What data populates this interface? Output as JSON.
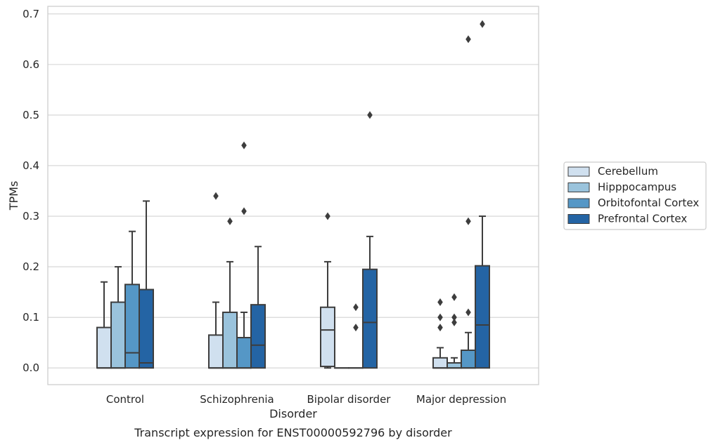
{
  "chart_data": {
    "type": "box",
    "title": "",
    "caption": "Transcript expression for ENST00000592796 by disorder",
    "xlabel": "Disorder",
    "ylabel": "TPMs",
    "ylim": [
      -0.033,
      0.715
    ],
    "yticks": [
      0.0,
      0.1,
      0.2,
      0.3,
      0.4,
      0.5,
      0.6,
      0.7
    ],
    "ytick_labels": [
      "0.0",
      "0.1",
      "0.2",
      "0.3",
      "0.4",
      "0.5",
      "0.6",
      "0.7"
    ],
    "grid": "horizontal",
    "legend_position": "right",
    "categories": [
      "Control",
      "Schizophrenia",
      "Bipolar disorder",
      "Major depression"
    ],
    "series": [
      {
        "name": "Cerebellum",
        "color": "#d0e0ef",
        "boxes": [
          {
            "q1": 0.0,
            "median": 0.0,
            "q3": 0.08,
            "whisker_low": 0.0,
            "whisker_high": 0.17,
            "outliers": []
          },
          {
            "q1": 0.0,
            "median": 0.0,
            "q3": 0.065,
            "whisker_low": 0.0,
            "whisker_high": 0.13,
            "outliers": [
              0.34
            ]
          },
          {
            "q1": 0.003,
            "median": 0.075,
            "q3": 0.12,
            "whisker_low": 0.0,
            "whisker_high": 0.21,
            "outliers": [
              0.3
            ]
          },
          {
            "q1": 0.0,
            "median": 0.0,
            "q3": 0.02,
            "whisker_low": 0.0,
            "whisker_high": 0.04,
            "outliers": [
              0.08,
              0.1,
              0.13
            ]
          }
        ]
      },
      {
        "name": "Hipppocampus",
        "color": "#9ac3dc",
        "boxes": [
          {
            "q1": 0.0,
            "median": 0.0,
            "q3": 0.13,
            "whisker_low": 0.0,
            "whisker_high": 0.2,
            "outliers": []
          },
          {
            "q1": 0.0,
            "median": 0.0,
            "q3": 0.11,
            "whisker_low": 0.0,
            "whisker_high": 0.21,
            "outliers": [
              0.29
            ]
          },
          {
            "q1": 0.0,
            "median": 0.0,
            "q3": 0.0,
            "whisker_low": 0.0,
            "whisker_high": 0.0,
            "outliers": []
          },
          {
            "q1": 0.0,
            "median": 0.0,
            "q3": 0.01,
            "whisker_low": 0.0,
            "whisker_high": 0.02,
            "outliers": [
              0.09,
              0.1,
              0.14
            ]
          }
        ]
      },
      {
        "name": "Orbitofontal Cortex",
        "color": "#5597c6",
        "boxes": [
          {
            "q1": 0.0,
            "median": 0.03,
            "q3": 0.165,
            "whisker_low": 0.0,
            "whisker_high": 0.27,
            "outliers": []
          },
          {
            "q1": 0.0,
            "median": 0.0,
            "q3": 0.06,
            "whisker_low": 0.0,
            "whisker_high": 0.11,
            "outliers": [
              0.31,
              0.44
            ]
          },
          {
            "q1": 0.0,
            "median": 0.0,
            "q3": 0.0,
            "whisker_low": 0.0,
            "whisker_high": 0.0,
            "outliers": [
              0.08,
              0.12
            ]
          },
          {
            "q1": 0.0,
            "median": 0.0,
            "q3": 0.035,
            "whisker_low": 0.0,
            "whisker_high": 0.07,
            "outliers": [
              0.11,
              0.29,
              0.65
            ]
          }
        ]
      },
      {
        "name": "Prefrontal Cortex",
        "color": "#2464a4",
        "boxes": [
          {
            "q1": 0.0,
            "median": 0.01,
            "q3": 0.155,
            "whisker_low": 0.0,
            "whisker_high": 0.33,
            "outliers": []
          },
          {
            "q1": 0.0,
            "median": 0.045,
            "q3": 0.125,
            "whisker_low": 0.0,
            "whisker_high": 0.24,
            "outliers": []
          },
          {
            "q1": 0.0,
            "median": 0.09,
            "q3": 0.195,
            "whisker_low": 0.0,
            "whisker_high": 0.26,
            "outliers": [
              0.5
            ]
          },
          {
            "q1": 0.0,
            "median": 0.085,
            "q3": 0.202,
            "whisker_low": 0.0,
            "whisker_high": 0.3,
            "outliers": [
              0.68
            ]
          }
        ]
      }
    ]
  }
}
